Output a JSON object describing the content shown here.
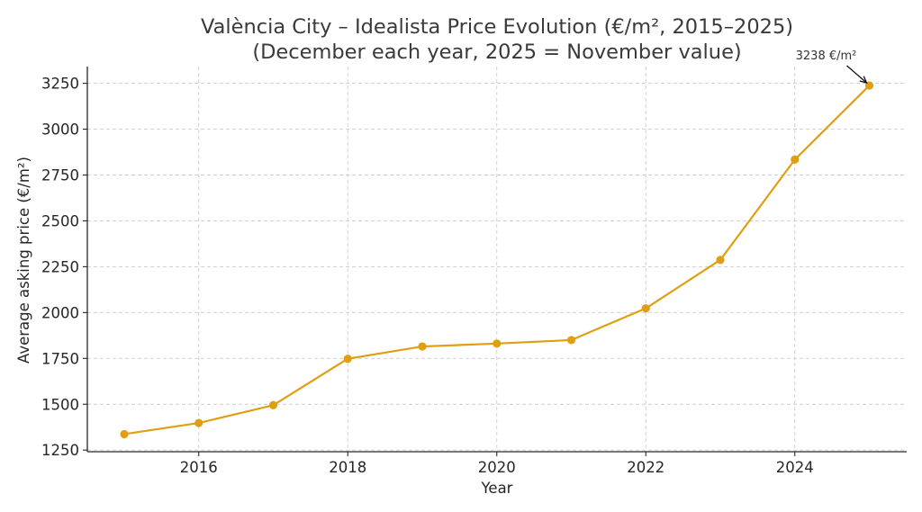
{
  "chart_data": {
    "type": "line",
    "title": "València City – Idealista Price Evolution (€/m², 2015–2025)",
    "subtitle": "(December each year, 2025 = November value)",
    "xlabel": "Year",
    "ylabel": "Average asking price (€/m²)",
    "x": [
      2015,
      2016,
      2017,
      2018,
      2019,
      2020,
      2021,
      2022,
      2023,
      2024,
      2025
    ],
    "series": [
      {
        "name": "Average asking price",
        "color": "#E09F12",
        "values": [
          1337,
          1398,
          1495,
          1748,
          1815,
          1831,
          1850,
          2023,
          2287,
          2834,
          3238
        ]
      }
    ],
    "xlim": [
      2014.5,
      2025.5
    ],
    "ylim": [
      1240,
      3330
    ],
    "xticks": [
      2016,
      2018,
      2020,
      2022,
      2024
    ],
    "yticks": [
      1250,
      1500,
      1750,
      2000,
      2250,
      2500,
      2750,
      3000,
      3250
    ],
    "grid": true,
    "annotations": [
      {
        "text": "3238 €/m²",
        "x": 2025,
        "y": 3238,
        "arrow": true
      }
    ]
  }
}
